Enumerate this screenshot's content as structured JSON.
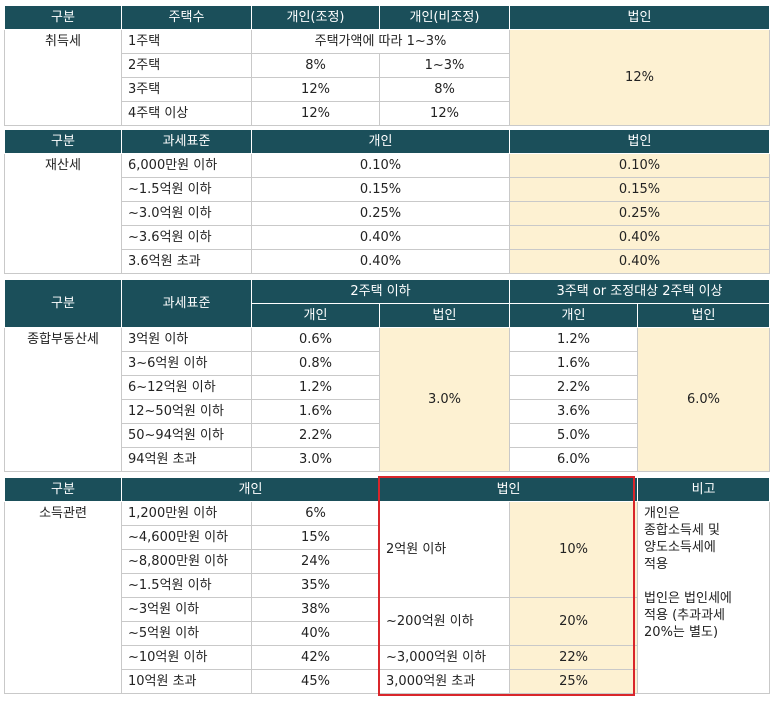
{
  "acquisition": {
    "headers": [
      "구분",
      "주택수",
      "개인(조정)",
      "개인(비조정)",
      "법인"
    ],
    "category": "취득세",
    "row1": {
      "homes": "1주택",
      "merged": "주택가액에 따라 1~3%"
    },
    "rows": [
      {
        "homes": "2주택",
        "adj": "8%",
        "nonadj": "1~3%"
      },
      {
        "homes": "3주택",
        "adj": "12%",
        "nonadj": "8%"
      },
      {
        "homes": "4주택 이상",
        "adj": "12%",
        "nonadj": "12%"
      }
    ],
    "corp": "12%"
  },
  "property": {
    "headers": [
      "구분",
      "과세표준",
      "개인",
      "법인"
    ],
    "category": "재산세",
    "rows": [
      {
        "base": "6,000만원 이하",
        "personal": "0.10%",
        "corp": "0.10%"
      },
      {
        "base": "~1.5억원 이하",
        "personal": "0.15%",
        "corp": "0.15%"
      },
      {
        "base": "~3.0억원 이하",
        "personal": "0.25%",
        "corp": "0.25%"
      },
      {
        "base": "~3.6억원 이하",
        "personal": "0.40%",
        "corp": "0.40%"
      },
      {
        "base": "3.6억원 초과",
        "personal": "0.40%",
        "corp": "0.40%"
      }
    ]
  },
  "comprehensive": {
    "header_gubun": "구분",
    "header_base": "과세표준",
    "group1": "2주택 이하",
    "group2": "3주택 or  조정대상 2주택 이상",
    "sub_personal": "개인",
    "sub_corp": "법인",
    "category": "종합부동산세",
    "rows": [
      {
        "base": "3억원 이하",
        "p1": "0.6%",
        "p2": "1.2%"
      },
      {
        "base": "3~6억원 이하",
        "p1": "0.8%",
        "p2": "1.6%"
      },
      {
        "base": "6~12억원 이하",
        "p1": "1.2%",
        "p2": "2.2%"
      },
      {
        "base": "12~50억원 이하",
        "p1": "1.6%",
        "p2": "3.6%"
      },
      {
        "base": "50~94억원 이하",
        "p1": "2.2%",
        "p2": "5.0%"
      },
      {
        "base": "94억원 초과",
        "p1": "3.0%",
        "p2": "6.0%"
      }
    ],
    "corp1": "3.0%",
    "corp2": "6.0%"
  },
  "income": {
    "headers": {
      "gubun": "구분",
      "personal": "개인",
      "corp": "법인",
      "note": "비고"
    },
    "category": "소득관련",
    "personal_rows": [
      {
        "base": "1,200만원 이하",
        "rate": "6%"
      },
      {
        "base": "~4,600만원 이하",
        "rate": "15%"
      },
      {
        "base": "~8,800만원 이하",
        "rate": "24%"
      },
      {
        "base": "~1.5억원 이하",
        "rate": "35%"
      },
      {
        "base": "~3억원 이하",
        "rate": "38%"
      },
      {
        "base": "~5억원 이하",
        "rate": "40%"
      },
      {
        "base": "~10억원 이하",
        "rate": "42%"
      },
      {
        "base": "10억원 초과",
        "rate": "45%"
      }
    ],
    "corp_rows": [
      {
        "base": "2억원 이하",
        "rate": "10%"
      },
      {
        "base": "~200억원 이하",
        "rate": "20%"
      },
      {
        "base": "~3,000억원 이하",
        "rate": "22%"
      },
      {
        "base": "3,000억원 초과",
        "rate": "25%"
      }
    ],
    "note_lines_1": [
      "개인은",
      "종합소득세 및",
      "양도소득세에",
      "적용"
    ],
    "note_lines_2": [
      "법인은 법인세에",
      "적용 (추과과세",
      "20%는 별도)"
    ]
  },
  "colors": {
    "header_bg": "#1b4f5a",
    "highlight_bg": "#fdf1d2",
    "box_border": "#d9262b"
  }
}
